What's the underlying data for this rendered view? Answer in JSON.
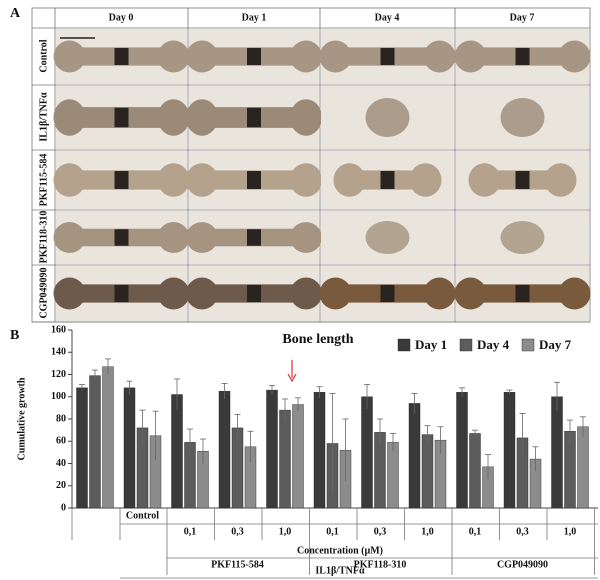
{
  "panel_a": {
    "label": "A",
    "columns": [
      "Day 0",
      "Day 1",
      "Day 4",
      "Day 7"
    ],
    "rows": [
      "Control",
      "IL1β/TNFα",
      "PKF115-584",
      "PKF118-310",
      "CGP049090"
    ]
  },
  "chart_data": {
    "type": "bar",
    "panel_label": "B",
    "title": "Bone length",
    "y_label": "Cumulative growth",
    "categories": [
      null,
      "Control",
      "0,1",
      "0,3",
      "1,0",
      "0,1",
      "0,3",
      "1,0",
      "0,1",
      "0,3",
      "1,0"
    ],
    "groups": [
      "PKF115-584",
      "PKF118-310",
      "CGP049090"
    ],
    "x_label": "Concentration (µM)",
    "treatment_label": "IL1β/TNFα",
    "series": [
      {
        "name": "Day 1",
        "color": "#3a3a3a",
        "values": [
          108,
          108,
          102,
          105,
          106,
          104,
          100,
          94,
          104,
          104,
          100
        ],
        "errors": [
          3,
          6,
          14,
          7,
          4,
          5,
          11,
          9,
          4,
          2,
          13
        ]
      },
      {
        "name": "Day 4",
        "color": "#5c5c5c",
        "values": [
          119,
          72,
          59,
          72,
          88,
          58,
          68,
          66,
          67,
          63,
          69
        ],
        "errors": [
          5,
          16,
          12,
          12,
          10,
          45,
          12,
          8,
          3,
          22,
          10
        ]
      },
      {
        "name": "Day 7",
        "color": "#8c8c8c",
        "values": [
          127,
          65,
          51,
          55,
          93,
          52,
          59,
          61,
          37,
          44,
          73
        ],
        "errors": [
          7,
          22,
          11,
          14,
          6,
          28,
          8,
          12,
          11,
          11,
          9
        ]
      }
    ],
    "ylim": [
      0,
      160
    ],
    "yticks": [
      0,
      20,
      40,
      60,
      80,
      100,
      120,
      140,
      160
    ],
    "legend": "top-right"
  }
}
